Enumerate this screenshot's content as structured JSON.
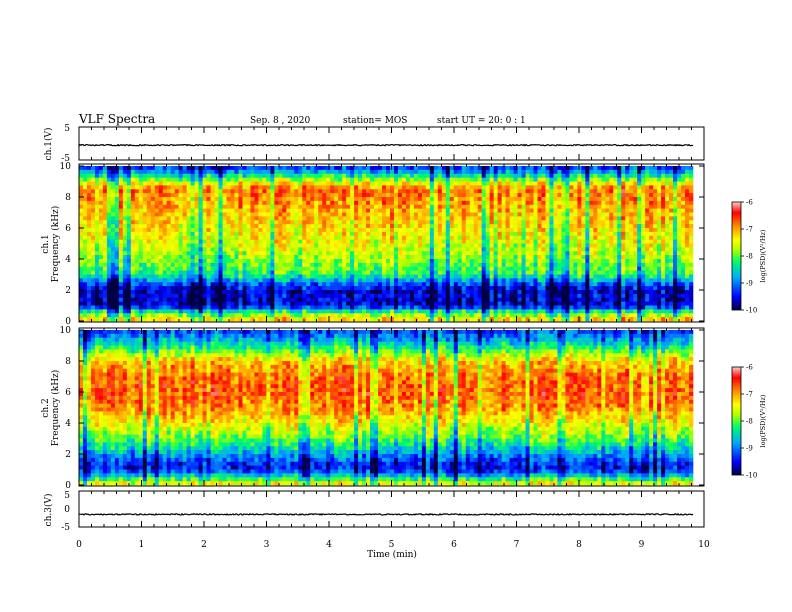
{
  "header": {
    "title": "VLF Spectra",
    "date": "Sep. 8 , 2020",
    "station": "station= MOS",
    "start_time": "start UT = 20: 0 : 1"
  },
  "chart_data": [
    {
      "type": "line",
      "name": "ch1-waveform",
      "ylabel": "ch.1(V)",
      "ylim": [
        -5,
        5
      ],
      "y_ticks": [
        "5",
        "-5"
      ],
      "xlim": [
        0,
        10
      ],
      "baseline_value": -0.5
    },
    {
      "type": "heatmap",
      "name": "ch1-spectrogram",
      "ylabel_line1": "ch.1",
      "ylabel_line2": "Frequency (kHz)",
      "ylim": [
        0,
        10
      ],
      "y_ticks": [
        "0",
        "2",
        "4",
        "6",
        "8",
        "10"
      ],
      "xlim": [
        0,
        10
      ],
      "description_profile_log_psd_by_freq_khz": {
        "0.0": -7.0,
        "0.5": -8.0,
        "1.0": -9.6,
        "2.0": -9.6,
        "2.5": -9.0,
        "3.0": -8.2,
        "4.0": -7.8,
        "5.0": -7.5,
        "6.0": -7.3,
        "7.0": -7.1,
        "8.0": -6.9,
        "8.5": -6.8,
        "9.0": -7.6,
        "9.5": -8.6,
        "10.0": -9.4
      },
      "colorbar": {
        "label": "log(PSD)(V²/Hz)",
        "range": [
          -10,
          -6
        ],
        "ticks": [
          "-6",
          "-7",
          "-8",
          "-9",
          "-10"
        ]
      }
    },
    {
      "type": "heatmap",
      "name": "ch2-spectrogram",
      "ylabel_line1": "ch.2",
      "ylabel_line2": "Frequency (kHz)",
      "ylim": [
        0,
        10
      ],
      "y_ticks": [
        "0",
        "2",
        "4",
        "6",
        "8",
        "10"
      ],
      "xlim": [
        0,
        10
      ],
      "description_profile_log_psd_by_freq_khz": {
        "0.0": -7.2,
        "0.5": -8.4,
        "1.0": -9.5,
        "1.5": -9.3,
        "2.0": -8.8,
        "3.0": -8.0,
        "4.0": -7.4,
        "5.0": -6.9,
        "6.0": -6.7,
        "7.0": -6.8,
        "8.0": -7.2,
        "8.5": -7.8,
        "9.0": -8.4,
        "9.5": -8.9,
        "10.0": -9.3
      },
      "colorbar": {
        "label": "log(PSD)(V²/Hz)",
        "range": [
          -10,
          -6
        ],
        "ticks": [
          "-6",
          "-7",
          "-8",
          "-9",
          "-10"
        ]
      }
    },
    {
      "type": "line",
      "name": "ch3-waveform",
      "ylabel": "ch.3(V)",
      "ylim": [
        -5,
        5
      ],
      "y_ticks": [
        "5",
        "0",
        "-5"
      ],
      "xlim": [
        0,
        10
      ],
      "baseline_value": -1.5
    }
  ],
  "x_axis": {
    "label": "Time (min)",
    "ticks": [
      "0",
      "1",
      "2",
      "3",
      "4",
      "5",
      "6",
      "7",
      "8",
      "9",
      "10"
    ]
  },
  "colors": {
    "scale": [
      "#000040",
      "#0000ff",
      "#00aaff",
      "#00ff66",
      "#aaff00",
      "#ffff00",
      "#ff8800",
      "#ff0000",
      "#ffaaaa"
    ]
  }
}
